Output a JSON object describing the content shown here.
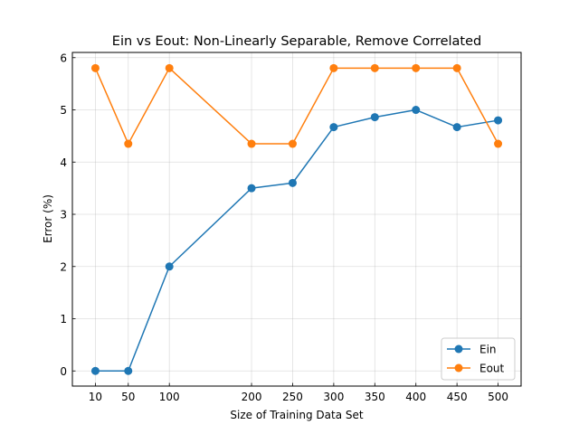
{
  "chart_data": {
    "type": "line",
    "title": "Ein vs Eout: Non-Linearly Separable, Remove Correlated",
    "xlabel": "Size of Training Data Set",
    "ylabel": "Error (%)",
    "x": [
      10,
      50,
      100,
      200,
      250,
      300,
      350,
      400,
      450,
      500
    ],
    "x_ticks": [
      "10",
      "50",
      "100",
      "200",
      "250",
      "300",
      "350",
      "400",
      "450",
      "500"
    ],
    "xlim": [
      -18,
      528
    ],
    "ylim": [
      -0.29,
      6.1
    ],
    "y_ticks": [
      "0",
      "1",
      "2",
      "3",
      "4",
      "5",
      "6"
    ],
    "grid": true,
    "legend_position": "lower-right",
    "series": [
      {
        "name": "Ein",
        "color": "#1f77b4",
        "values": [
          0,
          0,
          2.0,
          3.5,
          3.6,
          4.67,
          4.86,
          5.0,
          4.67,
          4.8
        ]
      },
      {
        "name": "Eout",
        "color": "#ff7f0e",
        "values": [
          5.8,
          4.35,
          5.8,
          4.35,
          4.35,
          5.8,
          5.8,
          5.8,
          5.8,
          4.35
        ]
      }
    ]
  }
}
